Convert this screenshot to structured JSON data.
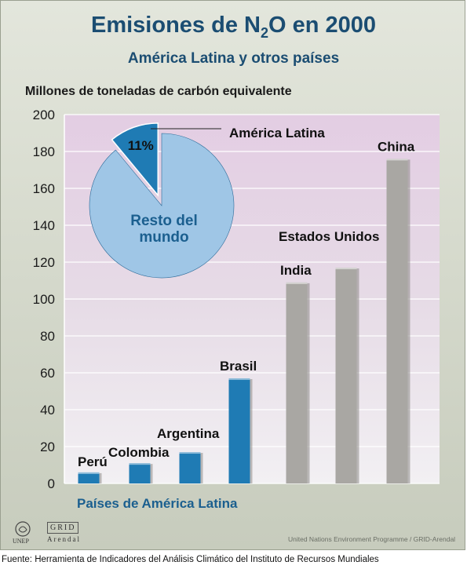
{
  "title_main": "Emisiones de N",
  "title_sub": "2",
  "title_end": "O en 2000",
  "subtitle": "América Latina y otros países",
  "chart_data": {
    "type": "bar",
    "title": "Emisiones de N2O en 2000",
    "subtitle": "América Latina y otros países",
    "ylabel": "Millones de toneladas de carbón equivalente",
    "ylim": [
      0,
      200
    ],
    "yticks": [
      0,
      20,
      40,
      60,
      80,
      100,
      120,
      140,
      160,
      180,
      200
    ],
    "categories": [
      "Perú",
      "Colombia",
      "Argentina",
      "Brasil",
      "India",
      "Estados Unidos",
      "China"
    ],
    "values": [
      6,
      11,
      17,
      57,
      109,
      117,
      176
    ],
    "groups": [
      "latam",
      "latam",
      "latam",
      "latam",
      "other",
      "other",
      "other"
    ],
    "group_label": "Países de América Latina",
    "colors": {
      "latam": "#1f7bb4",
      "other": "#a9a7a3",
      "pie_latam": "#1f7bb4",
      "pie_rest": "#9fc6e6"
    },
    "inset_pie": {
      "type": "pie",
      "slices": [
        {
          "label": "América Latina",
          "value": 11,
          "value_label": "11%"
        },
        {
          "label": "Resto del mundo",
          "value": 89,
          "value_label": ""
        }
      ]
    }
  },
  "credit": "United Nations Environment Programme / GRID-Arendal",
  "logo": {
    "unep": "UNEP",
    "grid": "GRID",
    "arendal": "Arendal"
  },
  "source": "Fuente: Herramienta de Indicadores del Análisis Climático del Instituto de Recursos Mundiales"
}
